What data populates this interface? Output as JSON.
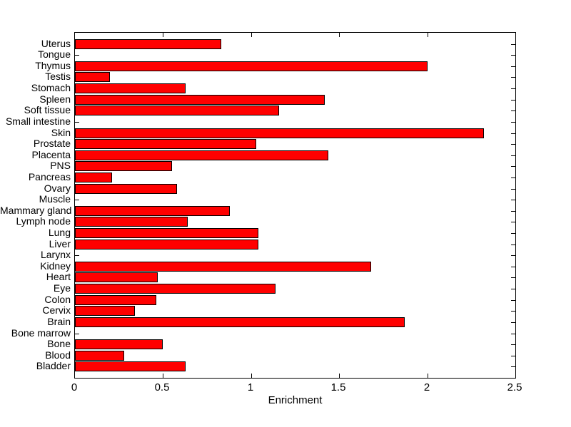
{
  "chart_data": {
    "type": "bar",
    "orientation": "horizontal",
    "title": "",
    "xlabel": "Enrichment",
    "ylabel": "",
    "xlim": [
      0,
      2.5
    ],
    "xticks": [
      0,
      0.5,
      1,
      1.5,
      2,
      2.5
    ],
    "xtick_labels": [
      "0",
      "0.5",
      "1",
      "1.5",
      "2",
      "2.5"
    ],
    "grid": false,
    "legend": null,
    "bar_color": "#ff0000",
    "bar_edge_color": "#000000",
    "categories_top_to_bottom": [
      "Uterus",
      "Tongue",
      "Thymus",
      "Testis",
      "Stomach",
      "Spleen",
      "Soft tissue",
      "Small intestine",
      "Skin",
      "Prostate",
      "Placenta",
      "PNS",
      "Pancreas",
      "Ovary",
      "Muscle",
      "Mammary gland",
      "Lymph node",
      "Lung",
      "Liver",
      "Larynx",
      "Kidney",
      "Heart",
      "Eye",
      "Colon",
      "Cervix",
      "Brain",
      "Bone marrow",
      "Bone",
      "Blood",
      "Bladder"
    ],
    "values": [
      0.83,
      0,
      2.0,
      0.2,
      0.63,
      1.42,
      1.16,
      0,
      2.32,
      1.03,
      1.44,
      0.55,
      0.21,
      0.58,
      0,
      0.88,
      0.64,
      1.04,
      1.04,
      0,
      1.68,
      0.47,
      1.14,
      0.46,
      0.34,
      1.87,
      0,
      0.5,
      0.28,
      0.63
    ]
  }
}
